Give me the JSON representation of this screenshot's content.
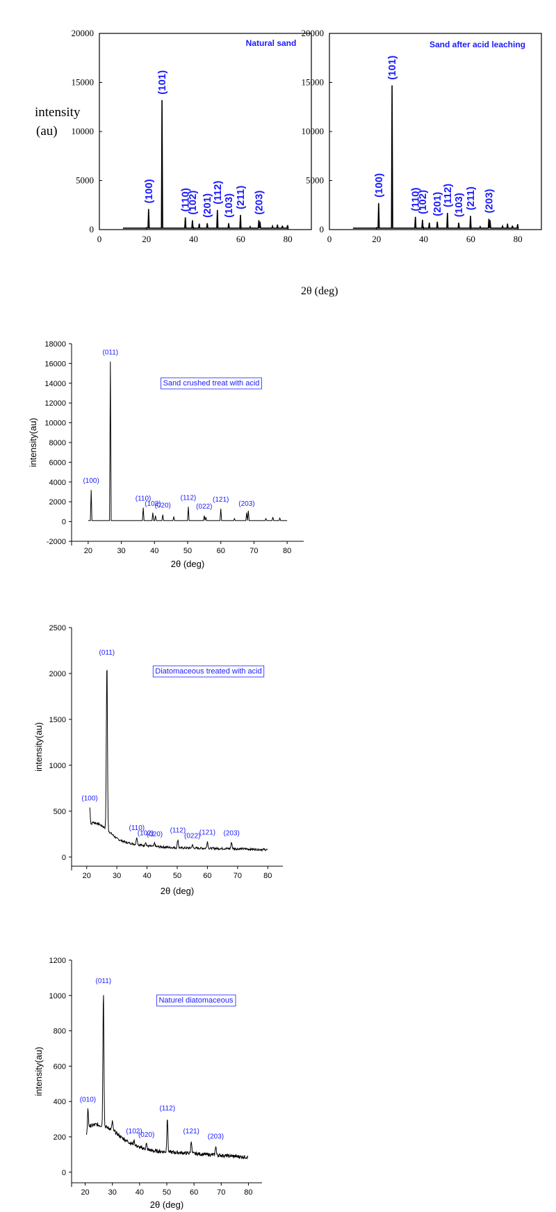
{
  "figure": {
    "shared_xlabel": "2θ (deg)",
    "shared_ylabel_line1": "intensity",
    "shared_ylabel_line2": "(au)"
  },
  "colors": {
    "label_blue": "#1a1aff",
    "axis": "#000000",
    "trace": "#000000",
    "box_border": "#1a1aff"
  },
  "chart_data": [
    {
      "id": "natural-sand",
      "type": "line",
      "title": "Natural sand",
      "xlim": [
        0,
        90
      ],
      "ylim": [
        0,
        20000
      ],
      "xticks": [
        0,
        20,
        40,
        60,
        80
      ],
      "yticks": [
        0,
        5000,
        10000,
        15000,
        20000
      ],
      "baseline": 150,
      "xstart": 10,
      "xend": 80,
      "peaks": [
        {
          "x": 20.9,
          "y": 2100,
          "label": "(100)"
        },
        {
          "x": 26.6,
          "y": 13200,
          "label": "(101)"
        },
        {
          "x": 36.5,
          "y": 1250,
          "label": "(110)"
        },
        {
          "x": 39.5,
          "y": 950,
          "label": "(102)"
        },
        {
          "x": 42.4,
          "y": 600,
          "label": ""
        },
        {
          "x": 45.8,
          "y": 650,
          "label": "(201)"
        },
        {
          "x": 50.1,
          "y": 2000,
          "label": "(112)"
        },
        {
          "x": 54.9,
          "y": 650,
          "label": "(103)"
        },
        {
          "x": 59.9,
          "y": 1500,
          "label": "(211)"
        },
        {
          "x": 64.0,
          "y": 300,
          "label": ""
        },
        {
          "x": 67.7,
          "y": 950,
          "label": "(203)"
        },
        {
          "x": 68.2,
          "y": 800,
          "label": ""
        },
        {
          "x": 73.5,
          "y": 350,
          "label": ""
        },
        {
          "x": 75.6,
          "y": 500,
          "label": ""
        },
        {
          "x": 77.7,
          "y": 400,
          "label": ""
        },
        {
          "x": 79.9,
          "y": 450,
          "label": ""
        }
      ]
    },
    {
      "id": "sand-after-acid-leaching",
      "type": "line",
      "title": "Sand after acid leaching",
      "xlim": [
        0,
        90
      ],
      "ylim": [
        0,
        20000
      ],
      "xticks": [
        0,
        20,
        40,
        60,
        80
      ],
      "yticks": [
        0,
        5000,
        10000,
        15000,
        20000
      ],
      "baseline": 150,
      "xstart": 10,
      "xend": 80,
      "peaks": [
        {
          "x": 20.9,
          "y": 2700,
          "label": "(100)"
        },
        {
          "x": 26.6,
          "y": 14700,
          "label": "(101)"
        },
        {
          "x": 36.5,
          "y": 1300,
          "label": "(110)"
        },
        {
          "x": 39.5,
          "y": 1000,
          "label": "(102)"
        },
        {
          "x": 42.4,
          "y": 700,
          "label": ""
        },
        {
          "x": 45.8,
          "y": 800,
          "label": "(201)"
        },
        {
          "x": 50.1,
          "y": 1700,
          "label": "(112)"
        },
        {
          "x": 54.9,
          "y": 700,
          "label": "(103)"
        },
        {
          "x": 59.9,
          "y": 1400,
          "label": "(211)"
        },
        {
          "x": 64.0,
          "y": 300,
          "label": ""
        },
        {
          "x": 67.7,
          "y": 1100,
          "label": "(203)"
        },
        {
          "x": 68.2,
          "y": 950,
          "label": ""
        },
        {
          "x": 73.5,
          "y": 350,
          "label": ""
        },
        {
          "x": 75.6,
          "y": 600,
          "label": ""
        },
        {
          "x": 77.7,
          "y": 400,
          "label": ""
        },
        {
          "x": 79.9,
          "y": 550,
          "label": ""
        }
      ]
    },
    {
      "id": "sand-crushed-treat-with-acid",
      "type": "line",
      "title": "Sand crushed treat with acid",
      "xlabel": "2θ (deg)",
      "ylabel": "intensity(au)",
      "xlim": [
        15,
        85
      ],
      "ylim": [
        -2000,
        18000
      ],
      "xticks": [
        20,
        30,
        40,
        50,
        60,
        70,
        80
      ],
      "yticks": [
        -2000,
        0,
        2000,
        4000,
        6000,
        8000,
        10000,
        12000,
        14000,
        16000,
        18000
      ],
      "baseline": 100,
      "xstart": 20,
      "xend": 80,
      "peaks": [
        {
          "x": 20.9,
          "y": 3200,
          "label": "(100)"
        },
        {
          "x": 26.7,
          "y": 16200,
          "label": "(011)"
        },
        {
          "x": 36.6,
          "y": 1400,
          "label": "(110)"
        },
        {
          "x": 39.5,
          "y": 900,
          "label": "(102)"
        },
        {
          "x": 40.3,
          "y": 600,
          "label": ""
        },
        {
          "x": 42.5,
          "y": 700,
          "label": "(020)"
        },
        {
          "x": 45.8,
          "y": 500,
          "label": ""
        },
        {
          "x": 50.2,
          "y": 1500,
          "label": "(112)"
        },
        {
          "x": 55.0,
          "y": 600,
          "label": "(022)"
        },
        {
          "x": 55.5,
          "y": 450,
          "label": ""
        },
        {
          "x": 60.0,
          "y": 1300,
          "label": "(121)"
        },
        {
          "x": 64.1,
          "y": 300,
          "label": ""
        },
        {
          "x": 67.8,
          "y": 900,
          "label": "(203)"
        },
        {
          "x": 68.3,
          "y": 1100,
          "label": ""
        },
        {
          "x": 73.6,
          "y": 300,
          "label": ""
        },
        {
          "x": 75.7,
          "y": 450,
          "label": ""
        },
        {
          "x": 77.8,
          "y": 350,
          "label": ""
        }
      ]
    },
    {
      "id": "diatomaceous-treated-with-acid",
      "type": "line",
      "title": "Diatomaceous treated with acid",
      "xlabel": "2θ (deg)",
      "ylabel": "intensity(au)",
      "xlim": [
        15,
        85
      ],
      "ylim": [
        -100,
        2500
      ],
      "xticks": [
        20,
        30,
        40,
        50,
        60,
        70,
        80
      ],
      "yticks": [
        0,
        500,
        1000,
        1500,
        2000,
        2500
      ],
      "noise": 12,
      "xstart": 21,
      "xend": 80,
      "background": [
        [
          21,
          330
        ],
        [
          22,
          380
        ],
        [
          24,
          360
        ],
        [
          26,
          320
        ],
        [
          28,
          260
        ],
        [
          30,
          200
        ],
        [
          33,
          160
        ],
        [
          36,
          140
        ],
        [
          40,
          120
        ],
        [
          45,
          110
        ],
        [
          50,
          100
        ],
        [
          60,
          95
        ],
        [
          70,
          90
        ],
        [
          80,
          80
        ]
      ],
      "peaks": [
        {
          "x": 21.0,
          "y": 540,
          "label": "(100)"
        },
        {
          "x": 26.7,
          "y": 2130,
          "label": "(011)"
        },
        {
          "x": 36.6,
          "y": 220,
          "label": "(110)"
        },
        {
          "x": 39.5,
          "y": 160,
          "label": "(102)"
        },
        {
          "x": 42.5,
          "y": 150,
          "label": "(020)"
        },
        {
          "x": 50.2,
          "y": 190,
          "label": "(112)"
        },
        {
          "x": 55.0,
          "y": 130,
          "label": "(022)"
        },
        {
          "x": 60.0,
          "y": 170,
          "label": "(121)"
        },
        {
          "x": 68.0,
          "y": 160,
          "label": "(203)"
        }
      ]
    },
    {
      "id": "naturel-diatomaceous",
      "type": "line",
      "title": "Naturel diatomaceous",
      "xlabel": "2θ (deg)",
      "ylabel": "intensity(au)",
      "xlim": [
        15,
        85
      ],
      "ylim": [
        -60,
        1200
      ],
      "xticks": [
        20,
        30,
        40,
        50,
        60,
        70,
        80
      ],
      "yticks": [
        0,
        200,
        400,
        600,
        800,
        1000,
        1200
      ],
      "noise": 10,
      "xstart": 20.5,
      "xend": 80,
      "background": [
        [
          20.5,
          200
        ],
        [
          21.5,
          260
        ],
        [
          24,
          270
        ],
        [
          27,
          260
        ],
        [
          30,
          240
        ],
        [
          33,
          200
        ],
        [
          36,
          170
        ],
        [
          40,
          140
        ],
        [
          45,
          120
        ],
        [
          50,
          115
        ],
        [
          60,
          105
        ],
        [
          70,
          95
        ],
        [
          80,
          85
        ]
      ],
      "peaks": [
        {
          "x": 21.0,
          "y": 360,
          "label": "(010)"
        },
        {
          "x": 26.7,
          "y": 1030,
          "label": "(011)"
        },
        {
          "x": 30.0,
          "y": 290,
          "label": ""
        },
        {
          "x": 38.0,
          "y": 180,
          "label": "(102)"
        },
        {
          "x": 42.5,
          "y": 160,
          "label": "(020)"
        },
        {
          "x": 50.2,
          "y": 310,
          "label": "(112)"
        },
        {
          "x": 59.0,
          "y": 180,
          "label": "(121)"
        },
        {
          "x": 68.0,
          "y": 150,
          "label": "(203)"
        }
      ]
    }
  ]
}
